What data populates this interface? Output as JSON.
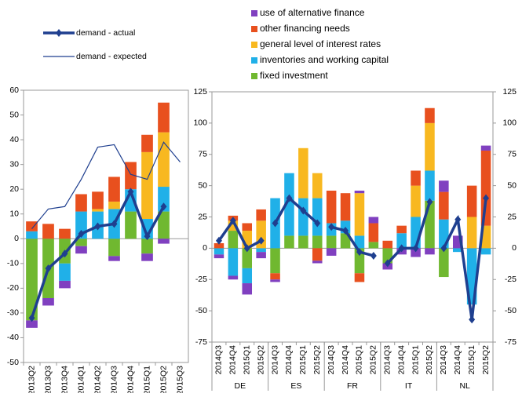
{
  "chart_data": [
    {
      "type": "bar",
      "stacked": true,
      "categories": [
        "2013Q2",
        "2013Q3",
        "2013Q4",
        "2014Q1",
        "2014Q2",
        "2014Q3",
        "2014Q4",
        "2015Q1",
        "2015Q2",
        "2015Q3"
      ],
      "ylim": [
        -50,
        60
      ],
      "yticks": [
        -50,
        -40,
        -30,
        -20,
        -10,
        0,
        10,
        20,
        30,
        40,
        50,
        60
      ],
      "series": [
        {
          "name": "use of alternative finance",
          "type": "bar",
          "color": "#8040c0",
          "values": [
            -3,
            -3,
            -3,
            -3,
            0,
            -2,
            0,
            -3,
            -2,
            null
          ]
        },
        {
          "name": "other financing needs",
          "type": "bar",
          "color": "#e8501e",
          "values": [
            4,
            6,
            4,
            7,
            7,
            10,
            11,
            7,
            12,
            null
          ]
        },
        {
          "name": "general level of interest rates",
          "type": "bar",
          "color": "#f8b820",
          "values": [
            0,
            0,
            0,
            0,
            1,
            3,
            0,
            27,
            22,
            null
          ]
        },
        {
          "name": "inventories and working capital",
          "type": "bar",
          "color": "#20b0e8",
          "values": [
            3,
            0,
            -7,
            11,
            11,
            12,
            9,
            8,
            10,
            null
          ]
        },
        {
          "name": "fixed investment",
          "type": "bar",
          "color": "#70b830",
          "values": [
            -33,
            -24,
            -10,
            -3,
            0,
            -7,
            11,
            -6,
            11,
            null
          ]
        },
        {
          "name": "demand - actual",
          "type": "line",
          "color": "#1f3f8f",
          "markers": true,
          "width": 3.5,
          "values": [
            -32,
            -12,
            -6,
            2,
            5,
            6,
            19,
            1,
            13,
            null
          ]
        },
        {
          "name": "demand - expected",
          "type": "line",
          "color": "#1f3f8f",
          "markers": false,
          "width": 1.2,
          "values": [
            4,
            12,
            13,
            24,
            37,
            38,
            26,
            24,
            39,
            31
          ]
        }
      ]
    },
    {
      "type": "bar",
      "stacked": true,
      "categories": [
        "2014Q3",
        "2014Q4",
        "2015Q1",
        "2015Q2",
        "2014Q3",
        "2014Q4",
        "2015Q1",
        "2015Q2",
        "2014Q3",
        "2014Q4",
        "2015Q1",
        "2015Q2",
        "2014Q3",
        "2014Q4",
        "2015Q1",
        "2015Q2",
        "2014Q3",
        "2014Q4",
        "2015Q1",
        "2015Q2"
      ],
      "groups": [
        "DE",
        "ES",
        "FR",
        "IT",
        "NL"
      ],
      "ylim": [
        -75,
        125
      ],
      "yticks": [
        -75,
        -50,
        -25,
        0,
        25,
        50,
        75,
        100,
        125
      ],
      "series": [
        {
          "name": "use of alternative finance",
          "type": "bar",
          "color": "#8040c0",
          "values": [
            -3,
            -3,
            -9,
            -5,
            -2,
            0,
            0,
            -2,
            -6,
            0,
            2,
            5,
            -5,
            -5,
            -7,
            -5,
            9,
            10,
            0,
            4
          ]
        },
        {
          "name": "other financing needs",
          "type": "bar",
          "color": "#e8501e",
          "values": [
            4,
            4,
            6,
            9,
            -5,
            0,
            0,
            -10,
            26,
            22,
            -7,
            15,
            6,
            6,
            12,
            12,
            22,
            0,
            25,
            60
          ]
        },
        {
          "name": "general level of interest rates",
          "type": "bar",
          "color": "#f8b820",
          "values": [
            0,
            8,
            14,
            22,
            0,
            0,
            40,
            20,
            0,
            0,
            34,
            0,
            0,
            0,
            25,
            38,
            0,
            0,
            25,
            18
          ]
        },
        {
          "name": "inventories and working capital",
          "type": "bar",
          "color": "#20b0e8",
          "values": [
            -5,
            -22,
            -12,
            -3,
            40,
            50,
            30,
            30,
            10,
            10,
            10,
            0,
            0,
            12,
            25,
            24,
            23,
            -3,
            -45,
            -5
          ]
        },
        {
          "name": "fixed investment",
          "type": "bar",
          "color": "#70b830",
          "values": [
            0,
            14,
            -16,
            0,
            -20,
            10,
            10,
            10,
            10,
            12,
            -20,
            5,
            -12,
            0,
            0,
            38,
            -23,
            0,
            0,
            0
          ]
        },
        {
          "name": "demand - actual",
          "type": "line",
          "color": "#1f3f8f",
          "markers": true,
          "width": 3.5,
          "values": [
            6,
            22,
            0,
            6,
            20,
            40,
            30,
            20,
            17,
            14,
            -3,
            -6,
            -12,
            0,
            0,
            37,
            0,
            23,
            -57,
            40
          ]
        }
      ]
    }
  ]
}
